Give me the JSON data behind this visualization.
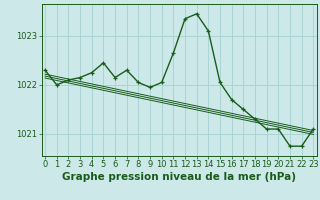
{
  "title": "Graphe pression niveau de la mer (hPa)",
  "bg_color": "#cce8e8",
  "grid_color": "#aad4d4",
  "line_color": "#1a5c1a",
  "hours": [
    0,
    1,
    2,
    3,
    4,
    5,
    6,
    7,
    8,
    9,
    10,
    11,
    12,
    13,
    14,
    15,
    16,
    17,
    18,
    19,
    20,
    21,
    22,
    23
  ],
  "x_labels": [
    "0",
    "1",
    "2",
    "3",
    "4",
    "5",
    "6",
    "7",
    "8",
    "9",
    "10",
    "11",
    "12",
    "13",
    "14",
    "15",
    "16",
    "17",
    "18",
    "19",
    "20",
    "21",
    "22",
    "23"
  ],
  "main_series": [
    1022.3,
    1022.0,
    1022.1,
    1022.15,
    1022.25,
    1022.45,
    1022.15,
    1022.3,
    1022.05,
    1021.95,
    1022.05,
    1022.65,
    1023.35,
    1023.45,
    1023.1,
    1022.05,
    1021.7,
    1021.5,
    1021.3,
    1021.1,
    1021.1,
    1020.75,
    1020.75,
    1021.1
  ],
  "trend1": [
    1022.22,
    1022.17,
    1022.12,
    1022.07,
    1022.02,
    1021.97,
    1021.92,
    1021.87,
    1021.82,
    1021.77,
    1021.72,
    1021.67,
    1021.62,
    1021.57,
    1021.52,
    1021.47,
    1021.42,
    1021.37,
    1021.32,
    1021.27,
    1021.22,
    1021.17,
    1021.12,
    1021.07
  ],
  "trend2": [
    1022.18,
    1022.13,
    1022.08,
    1022.03,
    1021.98,
    1021.93,
    1021.88,
    1021.83,
    1021.78,
    1021.73,
    1021.68,
    1021.63,
    1021.58,
    1021.53,
    1021.48,
    1021.43,
    1021.38,
    1021.33,
    1021.28,
    1021.23,
    1021.18,
    1021.13,
    1021.08,
    1021.03
  ],
  "trend3": [
    1022.14,
    1022.09,
    1022.04,
    1021.99,
    1021.94,
    1021.89,
    1021.84,
    1021.79,
    1021.74,
    1021.69,
    1021.64,
    1021.59,
    1021.54,
    1021.49,
    1021.44,
    1021.39,
    1021.34,
    1021.29,
    1021.24,
    1021.19,
    1021.14,
    1021.09,
    1021.04,
    1020.99
  ],
  "ylim": [
    1020.55,
    1023.65
  ],
  "yticks": [
    1021,
    1022,
    1023
  ],
  "title_fontsize": 7.5,
  "tick_fontsize": 6.0
}
